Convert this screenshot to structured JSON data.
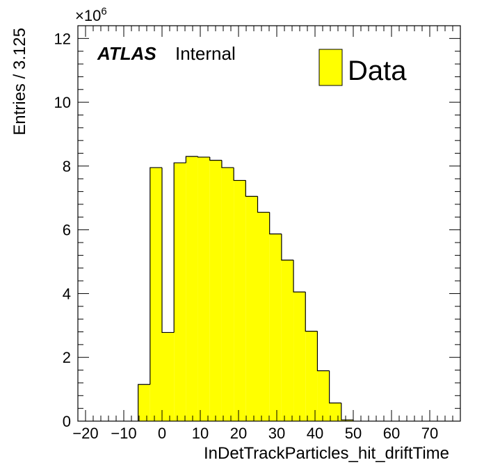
{
  "chart_data": {
    "type": "bar",
    "histogram": true,
    "xlabel": "InDetTrackParticles_hit_driftTime",
    "ylabel": "Entries / 3.125",
    "y_exponent_label": "×10",
    "y_exponent_power": "6",
    "xlim": [
      -22,
      78
    ],
    "ylim": [
      0,
      12.4
    ],
    "bin_width": 3.125,
    "x_ticks": [
      -20,
      -10,
      0,
      10,
      20,
      30,
      40,
      50,
      60,
      70
    ],
    "x_tick_labels": [
      "−20",
      "−10",
      "0",
      "10",
      "20",
      "30",
      "40",
      "50",
      "60",
      "70"
    ],
    "y_ticks": [
      0,
      2,
      4,
      6,
      8,
      10,
      12
    ],
    "y_tick_labels": [
      "0",
      "2",
      "4",
      "6",
      "8",
      "10",
      "12"
    ],
    "bin_edges": [
      -6.25,
      -3.125,
      0,
      3.125,
      6.25,
      9.375,
      12.5,
      15.625,
      18.75,
      21.875,
      25,
      28.125,
      31.25,
      34.375,
      37.5,
      40.625,
      43.75,
      46.875,
      50
    ],
    "values": [
      1.15,
      7.95,
      2.78,
      8.1,
      8.3,
      8.28,
      8.18,
      7.95,
      7.55,
      7.05,
      6.55,
      5.87,
      5.05,
      4.05,
      2.82,
      1.58,
      0.57,
      0.04
    ],
    "series": [
      {
        "name": "Data",
        "color": "#ffff00"
      }
    ],
    "legend_position": "top-right",
    "annotation_bold": "ATLAS",
    "annotation_normal": "Internal",
    "grid": false
  }
}
